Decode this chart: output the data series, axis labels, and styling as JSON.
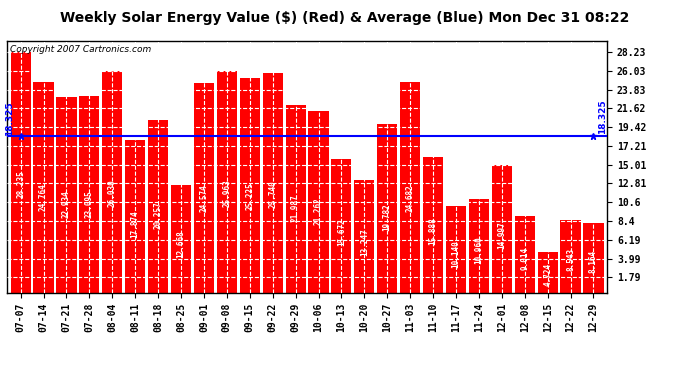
{
  "title": "Weekly Solar Energy Value ($) (Red) & Average (Blue) Mon Dec 31 08:22",
  "copyright": "Copyright 2007 Cartronics.com",
  "average_label": "18.325",
  "average_value": 18.325,
  "categories": [
    "07-07",
    "07-14",
    "07-21",
    "07-28",
    "08-04",
    "08-11",
    "08-18",
    "08-25",
    "09-01",
    "09-08",
    "09-15",
    "09-22",
    "09-29",
    "10-06",
    "10-13",
    "10-20",
    "10-27",
    "11-03",
    "11-10",
    "11-17",
    "11-24",
    "12-01",
    "12-08",
    "12-15",
    "12-22",
    "12-29"
  ],
  "values": [
    28.235,
    24.764,
    22.934,
    23.095,
    26.03,
    17.874,
    20.257,
    12.668,
    24.574,
    25.963,
    25.225,
    25.74,
    21.987,
    21.262,
    15.672,
    13.247,
    19.782,
    24.682,
    15.888,
    10.14,
    10.96,
    14.997,
    9.014,
    4.724,
    8.543,
    8.164
  ],
  "bar_color": "#ff0000",
  "avg_line_color": "#0000ff",
  "background_color": "#ffffff",
  "grid_color": "#ffffff",
  "yticks": [
    1.79,
    3.99,
    6.19,
    8.4,
    10.6,
    12.81,
    15.01,
    17.21,
    19.42,
    21.62,
    23.83,
    26.03,
    28.23
  ],
  "ylim_min": 0.0,
  "ylim_max": 29.5,
  "title_fontsize": 10,
  "bar_label_fontsize": 5.5,
  "tick_fontsize": 7,
  "copyright_fontsize": 6.5
}
